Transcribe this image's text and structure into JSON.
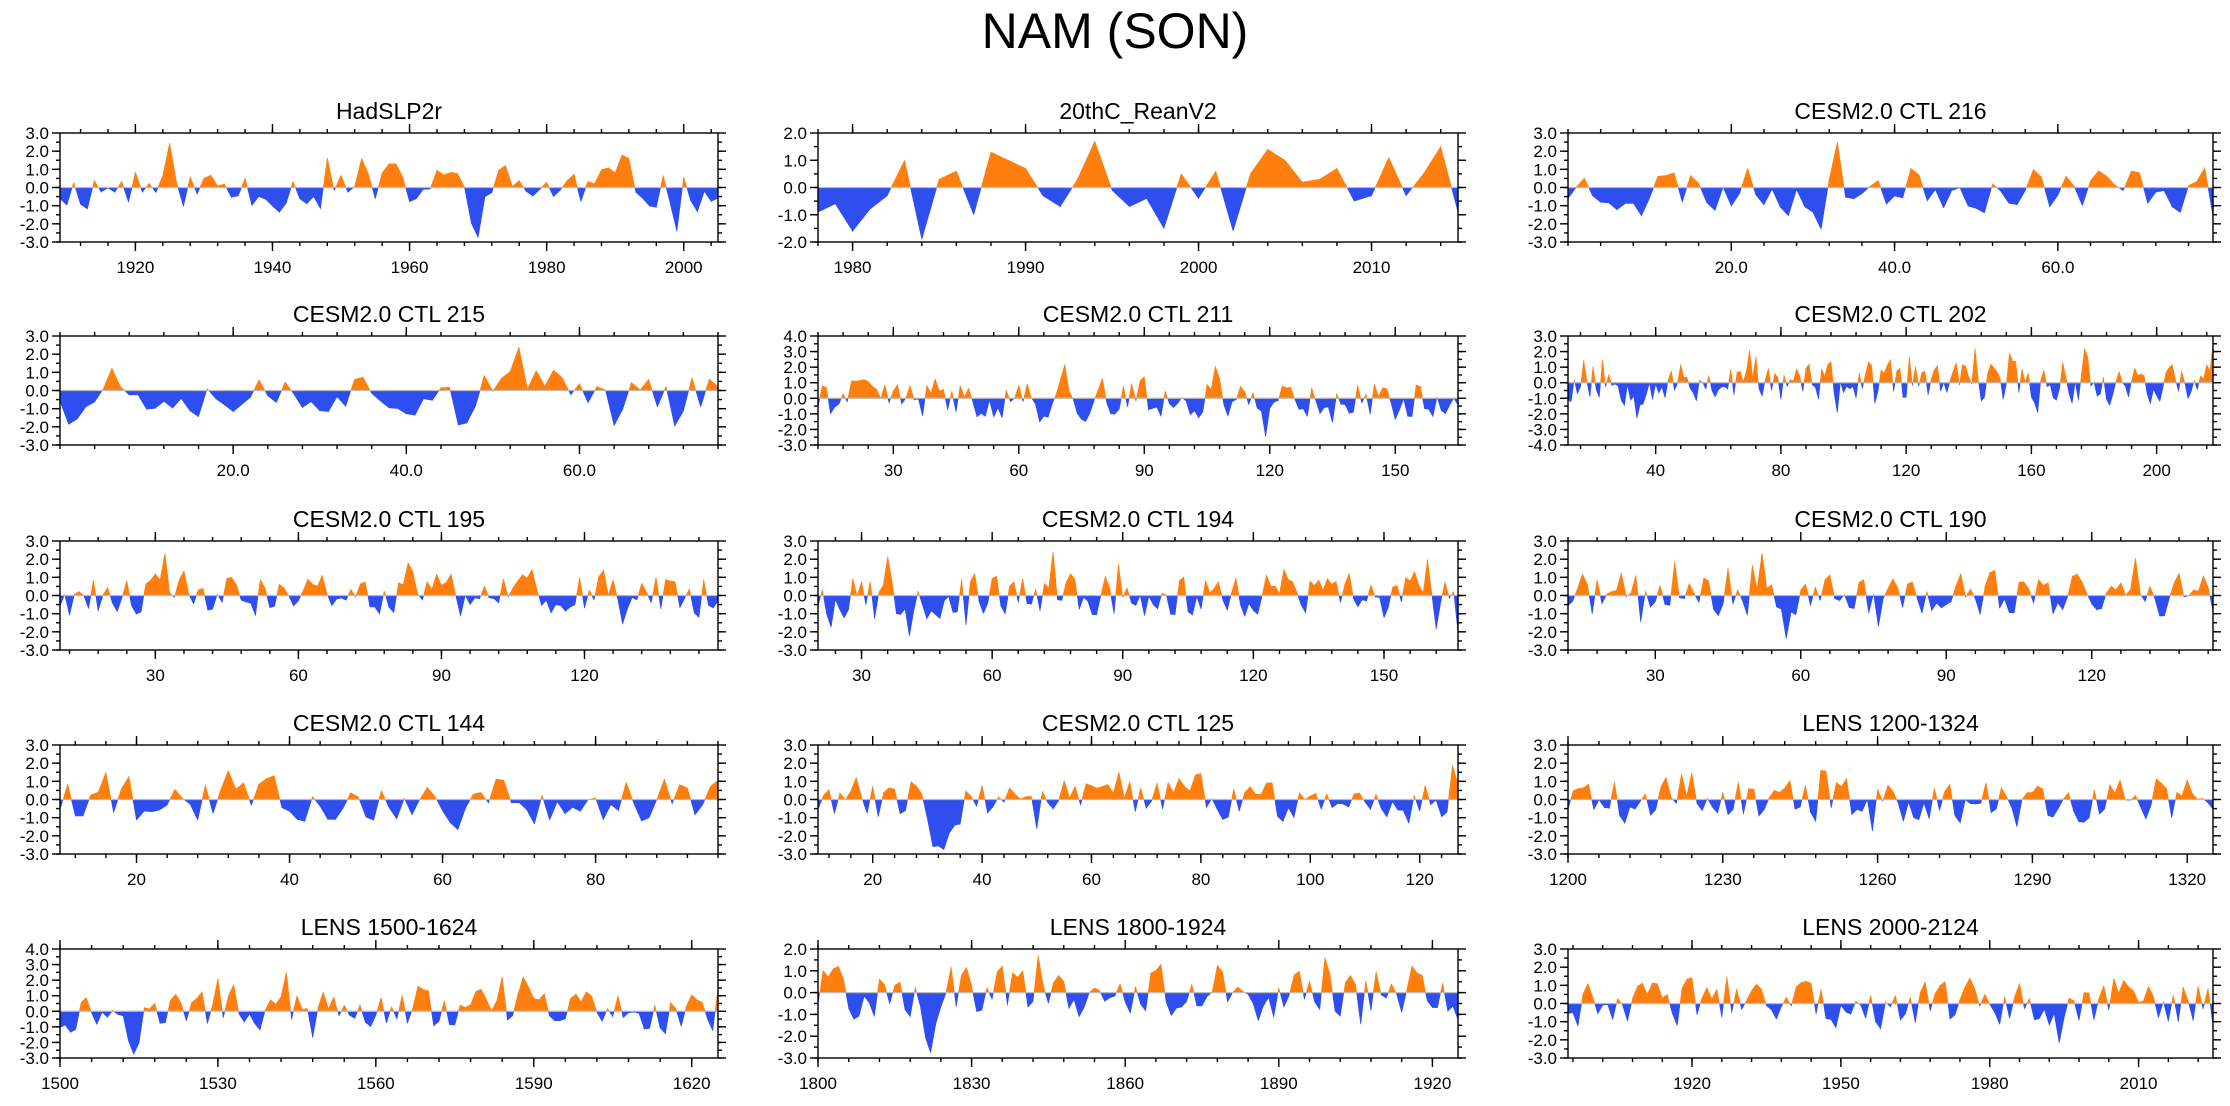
{
  "title": "NAM (SON)",
  "colors": {
    "positive": "#ff7f0e",
    "negative": "#2f4ef0",
    "zero_line": "#bbbbbb",
    "axis": "#000000"
  },
  "chart_data": [
    {
      "type": "area",
      "title": "HadSLP2r",
      "xlim": [
        1909,
        2005
      ],
      "ylim": [
        -3,
        3
      ],
      "yticks": [
        3,
        2,
        1,
        0,
        -1,
        -2,
        -3
      ],
      "ytick_labels": [
        "3.0",
        "2.0",
        "1.0",
        "0.0",
        "-1.0",
        "-2.0",
        "-3.0"
      ],
      "xticks": [
        1920,
        1940,
        1960,
        1980,
        2000
      ],
      "xtick_labels": [
        "1920",
        "1940",
        "1960",
        "1980",
        "2000"
      ],
      "seed": 11
    },
    {
      "type": "area",
      "title": "20thC_ReanV2",
      "xlim": [
        1978,
        2015
      ],
      "ylim": [
        -2,
        2
      ],
      "yticks": [
        2,
        1,
        0,
        -1,
        -2
      ],
      "ytick_labels": [
        "2.0",
        "1.0",
        "0.0",
        "-1.0",
        "-2.0"
      ],
      "xticks": [
        1980,
        1990,
        2000,
        2010
      ],
      "xtick_labels": [
        "1980",
        "1990",
        "2000",
        "2010"
      ],
      "x": [
        1978,
        1979,
        1980,
        1981,
        1982,
        1983,
        1984,
        1985,
        1986,
        1987,
        1988,
        1989,
        1990,
        1991,
        1992,
        1993,
        1994,
        1995,
        1996,
        1997,
        1998,
        1999,
        2000,
        2001,
        2002,
        2003,
        2004,
        2005,
        2006,
        2007,
        2008,
        2009,
        2010,
        2011,
        2012,
        2013,
        2014,
        2015
      ],
      "values": [
        -0.9,
        -0.6,
        -1.6,
        -0.8,
        -0.3,
        1.0,
        -1.9,
        0.3,
        0.6,
        -1.0,
        1.3,
        1.0,
        0.7,
        -0.3,
        -0.7,
        0.3,
        1.7,
        -0.1,
        -0.7,
        -0.4,
        -1.5,
        0.5,
        -0.4,
        0.6,
        -1.6,
        0.5,
        1.4,
        1.0,
        0.2,
        0.3,
        0.7,
        -0.5,
        -0.3,
        1.1,
        -0.3,
        0.5,
        1.5,
        -0.9
      ]
    },
    {
      "type": "area",
      "title": "CESM2.0 CTL 216",
      "xlim": [
        0,
        79
      ],
      "ylim": [
        -3,
        3
      ],
      "yticks": [
        3,
        2,
        1,
        0,
        -1,
        -2,
        -3
      ],
      "ytick_labels": [
        "3.0",
        "2.0",
        "1.0",
        "0.0",
        "-1.0",
        "-2.0",
        "-3.0"
      ],
      "xticks": [
        20,
        40,
        60
      ],
      "xtick_labels": [
        "20.0",
        "40.0",
        "60.0"
      ],
      "seed": 23
    },
    {
      "type": "area",
      "title": "CESM2.0 CTL 215",
      "xlim": [
        0,
        76
      ],
      "ylim": [
        -3,
        3
      ],
      "yticks": [
        3,
        2,
        1,
        0,
        -1,
        -2,
        -3
      ],
      "ytick_labels": [
        "3.0",
        "2.0",
        "1.0",
        "0.0",
        "-1.0",
        "-2.0",
        "-3.0"
      ],
      "xticks": [
        20,
        40,
        60
      ],
      "xtick_labels": [
        "20.0",
        "40.0",
        "60.0"
      ],
      "seed": 37
    },
    {
      "type": "area",
      "title": "CESM2.0 CTL 211",
      "xlim": [
        12,
        165
      ],
      "ylim": [
        -3,
        4
      ],
      "yticks": [
        4,
        3,
        2,
        1,
        0,
        -1,
        -2,
        -3
      ],
      "ytick_labels": [
        "4.0",
        "3.0",
        "2.0",
        "1.0",
        "0.0",
        "-1.0",
        "-2.0",
        "-3.0"
      ],
      "xticks": [
        30,
        60,
        90,
        120,
        150
      ],
      "xtick_labels": [
        "30",
        "60",
        "90",
        "120",
        "150"
      ],
      "seed": 41
    },
    {
      "type": "area",
      "title": "CESM2.0 CTL 202",
      "xlim": [
        12,
        218
      ],
      "ylim": [
        -4,
        3
      ],
      "yticks": [
        3,
        2,
        1,
        0,
        -1,
        -2,
        -3,
        -4
      ],
      "ytick_labels": [
        "3.0",
        "2.0",
        "1.0",
        "0.0",
        "-1.0",
        "-2.0",
        "-3.0",
        "-4.0"
      ],
      "xticks": [
        40,
        80,
        120,
        160,
        200
      ],
      "xtick_labels": [
        "40",
        "80",
        "120",
        "160",
        "200"
      ],
      "seed": 53
    },
    {
      "type": "area",
      "title": "CESM2.0 CTL 195",
      "xlim": [
        10,
        148
      ],
      "ylim": [
        -3,
        3
      ],
      "yticks": [
        3,
        2,
        1,
        0,
        -1,
        -2,
        -3
      ],
      "ytick_labels": [
        "3.0",
        "2.0",
        "1.0",
        "0.0",
        "-1.0",
        "-2.0",
        "-3.0"
      ],
      "xticks": [
        30,
        60,
        90,
        120
      ],
      "xtick_labels": [
        "30",
        "60",
        "90",
        "120"
      ],
      "seed": 61
    },
    {
      "type": "area",
      "title": "CESM2.0 CTL 194",
      "xlim": [
        20,
        167
      ],
      "ylim": [
        -3,
        3
      ],
      "yticks": [
        3,
        2,
        1,
        0,
        -1,
        -2,
        -3
      ],
      "ytick_labels": [
        "3.0",
        "2.0",
        "1.0",
        "0.0",
        "-1.0",
        "-2.0",
        "-3.0"
      ],
      "xticks": [
        30,
        60,
        90,
        120,
        150
      ],
      "xtick_labels": [
        "30",
        "60",
        "90",
        "120",
        "150"
      ],
      "seed": 67
    },
    {
      "type": "area",
      "title": "CESM2.0 CTL 190",
      "xlim": [
        12,
        145
      ],
      "ylim": [
        -3,
        3
      ],
      "yticks": [
        3,
        2,
        1,
        0,
        -1,
        -2,
        -3
      ],
      "ytick_labels": [
        "3.0",
        "2.0",
        "1.0",
        "0.0",
        "-1.0",
        "-2.0",
        "-3.0"
      ],
      "xticks": [
        30,
        60,
        90,
        120
      ],
      "xtick_labels": [
        "30",
        "60",
        "90",
        "120"
      ],
      "seed": 71
    },
    {
      "type": "area",
      "title": "CESM2.0 CTL 144",
      "xlim": [
        10,
        96
      ],
      "ylim": [
        -3,
        3
      ],
      "yticks": [
        3,
        2,
        1,
        0,
        -1,
        -2,
        -3
      ],
      "ytick_labels": [
        "3.0",
        "2.0",
        "1.0",
        "0.0",
        "-1.0",
        "-2.0",
        "-3.0"
      ],
      "xticks": [
        20,
        40,
        60,
        80
      ],
      "xtick_labels": [
        "20",
        "40",
        "60",
        "80"
      ],
      "seed": 79
    },
    {
      "type": "area",
      "title": "CESM2.0 CTL 125",
      "xlim": [
        10,
        127
      ],
      "ylim": [
        -3,
        3
      ],
      "yticks": [
        3,
        2,
        1,
        0,
        -1,
        -2,
        -3
      ],
      "ytick_labels": [
        "3.0",
        "2.0",
        "1.0",
        "0.0",
        "-1.0",
        "-2.0",
        "-3.0"
      ],
      "xticks": [
        20,
        40,
        60,
        80,
        100,
        120
      ],
      "xtick_labels": [
        "20",
        "40",
        "60",
        "80",
        "100",
        "120"
      ],
      "seed": 83
    },
    {
      "type": "area",
      "title": "LENS 1200-1324",
      "xlim": [
        1200,
        1325
      ],
      "ylim": [
        -3,
        3
      ],
      "yticks": [
        3,
        2,
        1,
        0,
        -1,
        -2,
        -3
      ],
      "ytick_labels": [
        "3.0",
        "2.0",
        "1.0",
        "0.0",
        "-1.0",
        "-2.0",
        "-3.0"
      ],
      "xticks": [
        1200,
        1230,
        1260,
        1290,
        1320
      ],
      "xtick_labels": [
        "1200",
        "1230",
        "1260",
        "1290",
        "1320"
      ],
      "seed": 89
    },
    {
      "type": "area",
      "title": "LENS 1500-1624",
      "xlim": [
        1500,
        1625
      ],
      "ylim": [
        -3,
        4
      ],
      "yticks": [
        4,
        3,
        2,
        1,
        0,
        -1,
        -2,
        -3
      ],
      "ytick_labels": [
        "4.0",
        "3.0",
        "2.0",
        "1.0",
        "0.0",
        "-1.0",
        "-2.0",
        "-3.0"
      ],
      "xticks": [
        1500,
        1530,
        1560,
        1590,
        1620
      ],
      "xtick_labels": [
        "1500",
        "1530",
        "1560",
        "1590",
        "1620"
      ],
      "seed": 97
    },
    {
      "type": "area",
      "title": "LENS 1800-1924",
      "xlim": [
        1800,
        1925
      ],
      "ylim": [
        -3,
        2
      ],
      "yticks": [
        2,
        1,
        0,
        -1,
        -2,
        -3
      ],
      "ytick_labels": [
        "2.0",
        "1.0",
        "0.0",
        "-1.0",
        "-2.0",
        "-3.0"
      ],
      "xticks": [
        1800,
        1830,
        1860,
        1890,
        1920
      ],
      "xtick_labels": [
        "1800",
        "1830",
        "1860",
        "1890",
        "1920"
      ],
      "seed": 101
    },
    {
      "type": "area",
      "title": "LENS 2000-2124",
      "xlim": [
        1895,
        2025
      ],
      "ylim": [
        -3,
        3
      ],
      "yticks": [
        3,
        2,
        1,
        0,
        -1,
        -2,
        -3
      ],
      "ytick_labels": [
        "3.0",
        "2.0",
        "1.0",
        "0.0",
        "-1.0",
        "-2.0",
        "-3.0"
      ],
      "xticks": [
        1920,
        1950,
        1980,
        2010
      ],
      "xtick_labels": [
        "1920",
        "1950",
        "1980",
        "2010"
      ],
      "seed": 103
    }
  ]
}
